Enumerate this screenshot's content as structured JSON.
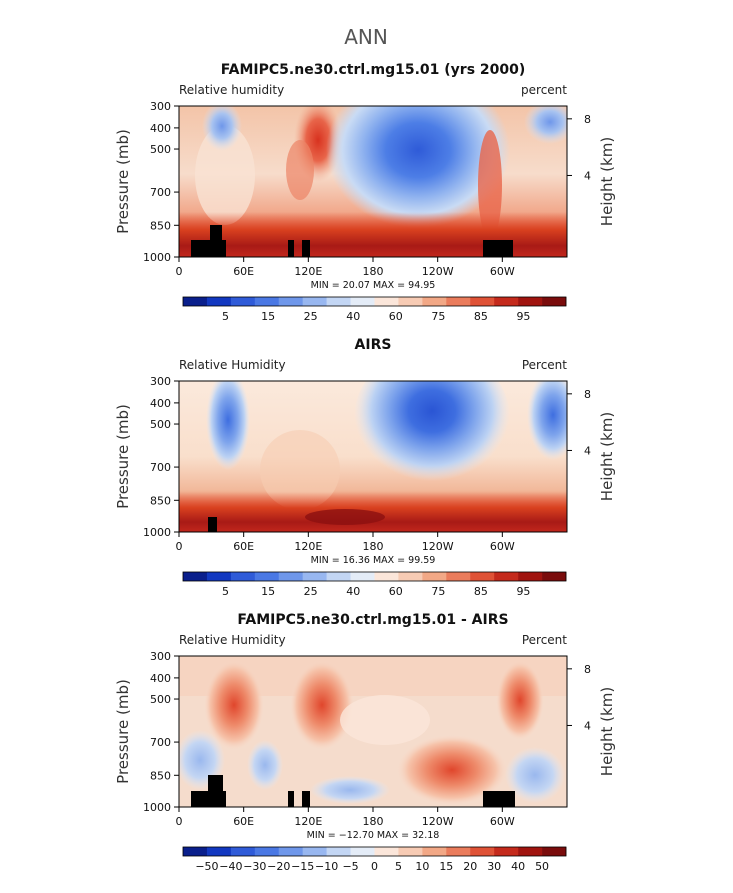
{
  "page": {
    "title": "ANN"
  },
  "colors": {
    "dry": "#2850c8",
    "neutral": "#f4e8dc",
    "moist": "#8c1010",
    "topography": "#000000"
  },
  "chart_data": [
    {
      "type": "heatmap",
      "title": "FAMIPC5.ne30.ctrl.mg15.01 (yrs 2000)",
      "left_label": "Relative humidity",
      "right_label": "percent",
      "ylabel": "Pressure (mb)",
      "ylabel_right": "Height (km)",
      "x_ticks": [
        "0",
        "60E",
        "120E",
        "180",
        "120W",
        "60W"
      ],
      "y_ticks": [
        "300",
        "400",
        "500",
        "700",
        "850",
        "1000"
      ],
      "y_right_ticks": [
        "8",
        "4"
      ],
      "stats": "MIN =   20.07   MAX =   94.95",
      "colorbar_labels": [
        "5",
        "15",
        "25",
        "40",
        "60",
        "75",
        "85",
        "95"
      ],
      "min": 20.07,
      "max": 94.95
    },
    {
      "type": "heatmap",
      "title": "AIRS",
      "left_label": "Relative Humidity",
      "right_label": "Percent",
      "ylabel": "Pressure (mb)",
      "ylabel_right": "Height (km)",
      "x_ticks": [
        "0",
        "60E",
        "120E",
        "180",
        "120W",
        "60W"
      ],
      "y_ticks": [
        "300",
        "400",
        "500",
        "700",
        "850",
        "1000"
      ],
      "y_right_ticks": [
        "8",
        "4"
      ],
      "stats": "MIN =   16.36   MAX =   99.59",
      "colorbar_labels": [
        "5",
        "15",
        "25",
        "40",
        "60",
        "75",
        "85",
        "95"
      ],
      "min": 16.36,
      "max": 99.59
    },
    {
      "type": "heatmap",
      "title": "FAMIPC5.ne30.ctrl.mg15.01 - AIRS",
      "left_label": "Relative Humidity",
      "right_label": "Percent",
      "ylabel": "Pressure (mb)",
      "ylabel_right": "Height (km)",
      "x_ticks": [
        "0",
        "60E",
        "120E",
        "180",
        "120W",
        "60W"
      ],
      "y_ticks": [
        "300",
        "400",
        "500",
        "700",
        "850",
        "1000"
      ],
      "y_right_ticks": [
        "8",
        "4"
      ],
      "stats": "MIN = −12.70   MAX =   32.18",
      "colorbar_labels": [
        "−50",
        "−40",
        "−30",
        "−20",
        "−15",
        "−10",
        "−5",
        "0",
        "5",
        "10",
        "15",
        "20",
        "30",
        "40",
        "50"
      ],
      "min": -12.7,
      "max": 32.18
    }
  ]
}
